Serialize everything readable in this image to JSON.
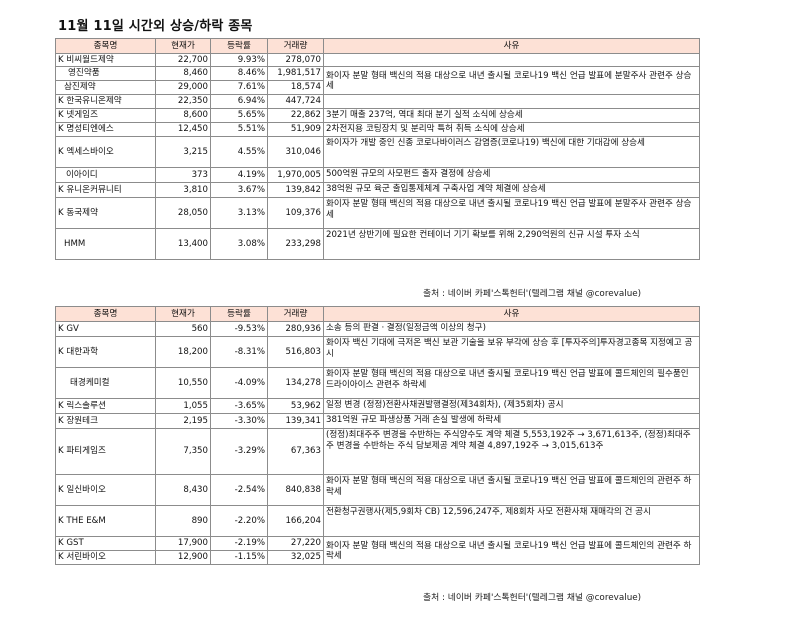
{
  "title": "11월 11일  시간외 상승/하락 종목",
  "headers": [
    "종목명",
    "현재가",
    "등락률",
    "거래량",
    "사유"
  ],
  "table1": {
    "rows": [
      {
        "name": "K 비씨월드제약",
        "price": "22,700",
        "rate": "9.93%",
        "volume": "278,070"
      },
      {
        "name": "영진약품",
        "price": "8,460",
        "rate": "8.46%",
        "volume": "1,981,517"
      },
      {
        "name": "삼진제약",
        "price": "29,000",
        "rate": "7.61%",
        "volume": "18,574"
      },
      {
        "name": "K 한국유니온제약",
        "price": "22,350",
        "rate": "6.94%",
        "volume": "447,724"
      },
      {
        "name": "K 넷게임즈",
        "price": "8,600",
        "rate": "5.65%",
        "volume": "22,862"
      },
      {
        "name": "K 명성티엔에스",
        "price": "12,450",
        "rate": "5.51%",
        "volume": "51,909"
      },
      {
        "name": "K 엑세스바이오",
        "price": "3,215",
        "rate": "4.55%",
        "volume": "310,046"
      },
      {
        "name": "이아이디",
        "price": "373",
        "rate": "4.19%",
        "volume": "1,970,005"
      },
      {
        "name": "K 유니온커뮤니티",
        "price": "3,810",
        "rate": "3.67%",
        "volume": "139,842"
      },
      {
        "name": "K 동국제약",
        "price": "28,050",
        "rate": "3.13%",
        "volume": "109,376"
      },
      {
        "name": "HMM",
        "price": "13,400",
        "rate": "3.08%",
        "volume": "233,298"
      }
    ],
    "reasons": [
      "화이자 분말 형태 백신의 적용 대상으로 내년 출시될 코로나19 백신 언급 발표에 분말주사 관련주 상승세",
      "3분기 매출 237억, 역대 최대 분기 실적 소식에 상승세",
      "2차전지용 코팅장치 및 분리막 특허 취득 소식에 상승세",
      "화이자가 개발 중인 신종 코로나바이러스 감염증(코로나19) 백신에 대한 기대감에 상승세",
      "500억원 규모의 사모펀드 출자 결정에 상승세",
      "38억원 규모 육군 출입통제체계 구축사업 계약 체결에 상승세",
      "화이자 분말 형태 백신의 적용 대상으로 내년 출시될 코로나19 백신 언급 발표에 분말주사 관련주 상승세",
      "2021년 상반기에 필요한 컨테이너 기기 확보를 위해 2,290억원의 신규 시설 투자 소식"
    ],
    "source": "출처 : 네이버 카페'스톡헌터'(텔레그램 채널 @corevalue)"
  },
  "table2": {
    "rows": [
      {
        "name": "K GV",
        "price": "560",
        "rate": "-9.53%",
        "volume": "280,936",
        "reason": "소송 등의 판결ㆍ결정(일정금액 이상의 청구)"
      },
      {
        "name": "K 대한과학",
        "price": "18,200",
        "rate": "-8.31%",
        "volume": "516,803",
        "reason": "화이자 백신 기대에 극저온 백신 보관 기술을 보유 부각에 상승 후 [투자주의]투자경고종목 지정예고 공시"
      },
      {
        "name": "태경케미컬",
        "price": "10,550",
        "rate": "-4.09%",
        "volume": "134,278",
        "reason": "화이자 분말 형태 백신의 적용 대상으로 내년 출시될 코로나19 백신 언급 발표에 콜드체인의 필수품인 드라이아이스 관련주 하락세"
      },
      {
        "name": "K 릭스솔루션",
        "price": "1,055",
        "rate": "-3.65%",
        "volume": "53,962",
        "reason": "일정 변경 (정정)전환사채권발행결정(제34회차), (제35회차) 공시"
      },
      {
        "name": "K 장원테크",
        "price": "2,195",
        "rate": "-3.30%",
        "volume": "139,341",
        "reason": "381억원 규모 파생상품 거래 손실 발생에 하락세"
      },
      {
        "name": "K 파티게임즈",
        "price": "7,350",
        "rate": "-3.29%",
        "volume": "67,363",
        "reason": "(정정)최대주주 변경을 수반하는 주식양수도 계약 체결 5,553,192주 → 3,671,613주, (정정)최대주주 변경을 수반하는 주식 담보제공 계약 체결 4,897,192주 → 3,015,613주"
      },
      {
        "name": "K 일신바이오",
        "price": "8,430",
        "rate": "-2.54%",
        "volume": "840,838",
        "reason": "화이자 분말 형태 백신의 적용 대상으로 내년 출시될 코로나19 백신 언급 발표에 콜드체인의 관련주 하락세"
      },
      {
        "name": "K THE E&M",
        "price": "890",
        "rate": "-2.20%",
        "volume": "166,204",
        "reason": "전환청구권행사(제5,9회차 CB) 12,596,247주, 제8회차 사모 전환사채 재매각의 건 공시"
      },
      {
        "name": "K GST",
        "price": "17,900",
        "rate": "-2.19%",
        "volume": "27,220",
        "reason": "화이자 분말 형태 백신의 적용 대상으로 내년 출시될 코로나19 백신 언급 발표에 콜드체인의 관련주 하락세"
      },
      {
        "name": "K 서린바이오",
        "price": "12,900",
        "rate": "-1.15%",
        "volume": "32,025",
        "reason": ""
      }
    ],
    "source": "출처 : 네이버 카페'스톡헌터'(텔레그램 채널 @corevalue)"
  }
}
